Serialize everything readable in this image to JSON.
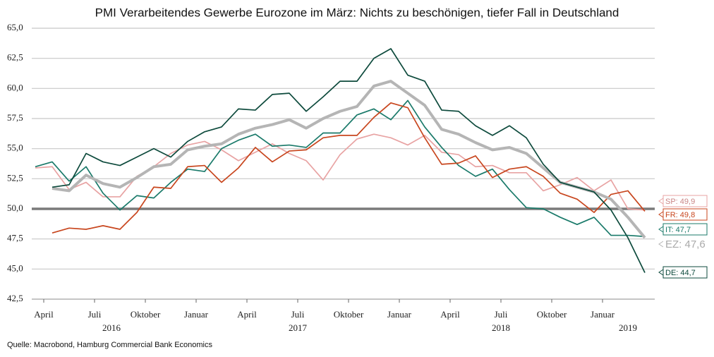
{
  "chart_data": {
    "type": "line",
    "title": "PMI Verarbeitendes Gewerbe Eurozone im März: Nichts zu beschönigen, tiefer Fall in Deutschland",
    "source": "Quelle: Macrobond, Hamburg Commercial Bank Economics",
    "categories": [
      null,
      "April",
      null,
      null,
      "Juli",
      null,
      null,
      "Oktober",
      null,
      null,
      "Januar",
      null,
      null,
      "April",
      null,
      null,
      "Juli",
      null,
      null,
      "Oktober",
      null,
      null,
      "Januar",
      null,
      null,
      "April",
      null,
      null,
      "Juli",
      null,
      null,
      "Oktober",
      null,
      null,
      "Januar",
      null,
      null
    ],
    "category_groups": [
      {
        "label": "2016",
        "start": 0,
        "end": 9
      },
      {
        "label": "2017",
        "start": 10,
        "end": 21
      },
      {
        "label": "2018",
        "start": 22,
        "end": 33
      },
      {
        "label": "2019",
        "start": 34,
        "end": 36
      }
    ],
    "ylim": [
      42.5,
      65
    ],
    "yticks": [
      {
        "value": 42.5,
        "label": "42,5"
      },
      {
        "value": 45,
        "label": "45,0"
      },
      {
        "value": 47.5,
        "label": "47,5"
      },
      {
        "value": 50,
        "label": "50,0"
      },
      {
        "value": 52.5,
        "label": "52,5"
      },
      {
        "value": 55,
        "label": "55,0"
      },
      {
        "value": 57.5,
        "label": "57,5"
      },
      {
        "value": 60,
        "label": "60,0"
      },
      {
        "value": 62.5,
        "label": "62,5"
      },
      {
        "value": 65,
        "label": "65,0"
      }
    ],
    "grid": true,
    "reference_line": 50,
    "series": [
      {
        "name": "SP",
        "color": "#e8a3a3",
        "end_label": "SP: 49,9",
        "values": [
          53.4,
          53.5,
          51.6,
          52.2,
          51.0,
          51.0,
          52.7,
          53.5,
          54.6,
          55.3,
          55.6,
          54.9,
          54.0,
          54.7,
          55.4,
          54.6,
          54.0,
          52.4,
          54.5,
          55.8,
          56.2,
          55.9,
          55.3,
          56.1,
          54.7,
          54.5,
          53.5,
          53.6,
          53.0,
          53.0,
          51.5,
          52.0,
          52.6,
          51.5,
          52.4,
          50.0,
          49.9
        ]
      },
      {
        "name": "IT",
        "color": "#1a7a6a",
        "end_label": "IT: 47,7",
        "values": [
          53.5,
          53.9,
          52.3,
          53.5,
          51.3,
          49.9,
          51.1,
          50.9,
          52.2,
          53.3,
          53.1,
          55.0,
          55.7,
          56.2,
          55.2,
          55.3,
          55.1,
          56.3,
          56.3,
          57.8,
          58.3,
          57.4,
          59.0,
          56.8,
          55.1,
          53.6,
          52.7,
          53.3,
          51.6,
          50.1,
          50.0,
          49.3,
          48.7,
          49.3,
          47.8,
          47.8,
          47.7
        ]
      },
      {
        "name": "FR",
        "color": "#c8461e",
        "end_label": "FR: 49,8",
        "values": [
          null,
          48.0,
          48.4,
          48.3,
          48.6,
          48.3,
          49.7,
          51.8,
          51.7,
          53.5,
          53.6,
          52.2,
          53.4,
          55.1,
          53.9,
          54.8,
          54.9,
          55.9,
          56.1,
          56.1,
          57.6,
          58.8,
          58.4,
          55.9,
          53.7,
          53.8,
          54.4,
          52.6,
          53.3,
          53.5,
          52.7,
          51.3,
          50.8,
          49.7,
          51.2,
          51.5,
          49.8
        ]
      },
      {
        "name": "EZ",
        "color": "#b5b5b5",
        "end_label": "EZ: 47,6",
        "values": [
          null,
          51.7,
          51.5,
          52.8,
          52.1,
          51.8,
          52.6,
          53.5,
          53.7,
          54.9,
          55.2,
          55.4,
          56.2,
          56.7,
          57.0,
          57.4,
          56.7,
          57.5,
          58.1,
          58.5,
          60.2,
          60.6,
          59.6,
          58.6,
          56.6,
          56.2,
          55.5,
          54.9,
          55.1,
          54.6,
          53.4,
          52.2,
          51.8,
          51.4,
          50.8,
          49.3,
          47.6
        ]
      },
      {
        "name": "DE",
        "color": "#0d4a3c",
        "end_label": "DE: 44,7",
        "values": [
          null,
          51.8,
          52.0,
          54.6,
          53.9,
          53.6,
          54.3,
          55.0,
          54.3,
          55.6,
          56.4,
          56.8,
          58.3,
          58.2,
          59.5,
          59.6,
          58.1,
          59.3,
          60.6,
          60.6,
          62.5,
          63.3,
          61.1,
          60.6,
          58.2,
          58.1,
          56.9,
          56.1,
          56.9,
          55.9,
          53.7,
          52.2,
          51.8,
          51.4,
          49.9,
          47.6,
          44.7
        ]
      }
    ]
  }
}
